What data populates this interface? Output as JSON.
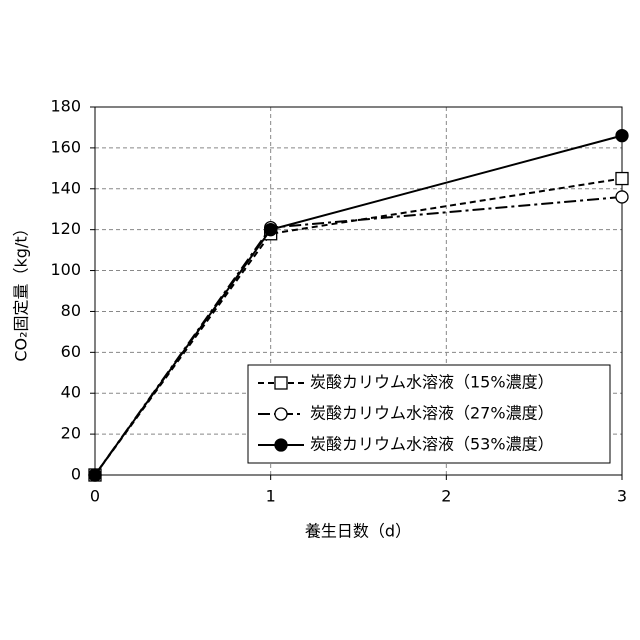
{
  "chart_data": {
    "type": "line",
    "x_label": "養生日数（d）",
    "y_label": "CO₂固定量（kg/t）",
    "x": [
      0,
      1,
      3
    ],
    "series": [
      {
        "name": "炭酸カリウム水溶液（15%濃度）",
        "color": "#000000",
        "line_style": "dashed",
        "marker": "open-square",
        "values": [
          0,
          118,
          145
        ]
      },
      {
        "name": "炭酸カリウム水溶液（27%濃度）",
        "color": "#000000",
        "line_style": "dashdot",
        "marker": "open-circle",
        "values": [
          0,
          121,
          136
        ]
      },
      {
        "name": "炭酸カリウム水溶液（53%濃度）",
        "color": "#000000",
        "line_style": "solid",
        "marker": "filled-circle",
        "values": [
          0,
          120,
          166
        ]
      }
    ],
    "xlim": [
      0,
      3
    ],
    "xticks": [
      0,
      1,
      2,
      3
    ],
    "ylim": [
      0,
      180
    ],
    "yticks": [
      0,
      20,
      40,
      60,
      80,
      100,
      120,
      140,
      160,
      180
    ],
    "grid": true,
    "legend": "lower right"
  }
}
